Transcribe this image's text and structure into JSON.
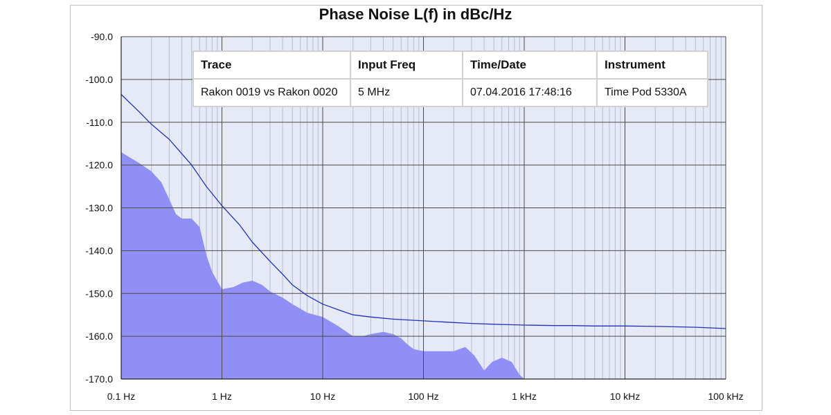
{
  "chart_data": {
    "type": "line",
    "title": "Phase Noise L(f) in dBc/Hz",
    "xscale": "log",
    "xlim": [
      0.1,
      100000
    ],
    "ylim": [
      -170,
      -90
    ],
    "grid": true,
    "x_ticks": [
      0.1,
      1,
      10,
      100,
      1000,
      10000,
      100000
    ],
    "x_tick_labels": [
      "0.1 Hz",
      "1 Hz",
      "10 Hz",
      "100 Hz",
      "1 kHz",
      "10 kHz",
      "100 kHz"
    ],
    "y_ticks": [
      -90,
      -100,
      -110,
      -120,
      -130,
      -140,
      -150,
      -160,
      -170
    ],
    "y_tick_labels": [
      "-90.0",
      "-100.0",
      "-110.0",
      "-120.0",
      "-130.0",
      "-140.0",
      "-150.0",
      "-160.0",
      "-170.0"
    ],
    "series": [
      {
        "kind": "line",
        "color": "#1f2fc0",
        "x": [
          0.1,
          0.15,
          0.2,
          0.3,
          0.5,
          0.7,
          1,
          1.5,
          2,
          3,
          4,
          5,
          7,
          10,
          15,
          20,
          30,
          50,
          70,
          100,
          200,
          300,
          500,
          700,
          1000,
          2000,
          3000,
          5000,
          10000,
          20000,
          50000,
          100000
        ],
        "y": [
          -103.5,
          -107.5,
          -110.5,
          -114,
          -120,
          -125,
          -129.5,
          -134,
          -138,
          -142.5,
          -145.5,
          -148,
          -150.5,
          -152.5,
          -154,
          -155,
          -155.5,
          -156,
          -156.2,
          -156.4,
          -156.8,
          -157,
          -157.2,
          -157.3,
          -157.4,
          -157.5,
          -157.5,
          -157.6,
          -157.6,
          -157.7,
          -157.9,
          -158.2
        ]
      },
      {
        "kind": "area",
        "color": "#8f8ff5",
        "x": [
          0.1,
          0.15,
          0.2,
          0.25,
          0.3,
          0.35,
          0.4,
          0.5,
          0.6,
          0.7,
          0.8,
          1,
          1.3,
          1.6,
          2,
          2.5,
          3,
          4,
          5,
          7,
          10,
          14,
          20,
          25,
          30,
          40,
          50,
          60,
          70,
          80,
          100,
          140,
          200,
          260,
          320,
          400,
          480,
          600,
          750,
          900,
          1000
        ],
        "y": [
          -117,
          -119.5,
          -121.5,
          -124,
          -128,
          -131.5,
          -132.5,
          -132.5,
          -134.5,
          -141,
          -145,
          -149,
          -148.5,
          -147.5,
          -147,
          -148,
          -149.5,
          -151,
          -152.5,
          -154.5,
          -155.5,
          -157.5,
          -160,
          -160,
          -159.5,
          -159,
          -159.5,
          -160.5,
          -162,
          -163,
          -163.5,
          -163.5,
          -163.5,
          -162.5,
          -164.5,
          -168,
          -166,
          -165,
          -166,
          -169,
          -170
        ]
      }
    ],
    "legend_table": {
      "headers": [
        "Trace",
        "Input Freq",
        "Time/Date",
        "Instrument"
      ],
      "row": [
        "Rakon 0019 vs Rakon 0020",
        "5 MHz",
        "07.04.2016 17:48:16",
        "Time Pod 5330A"
      ]
    }
  }
}
